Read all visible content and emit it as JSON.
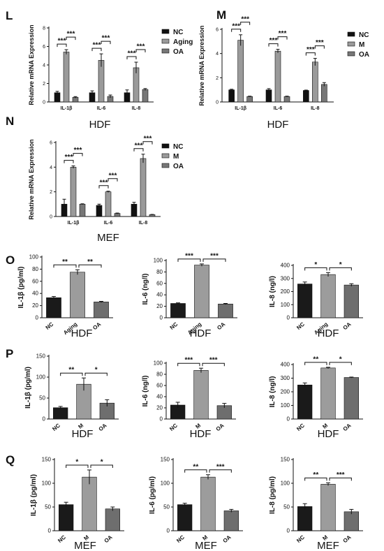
{
  "panels": [
    {
      "id": "L",
      "label": "L",
      "ylabel": "Relative mRNA Expression",
      "caption": "HDF",
      "cats": [
        "IL-1β",
        "IL-6",
        "IL-8"
      ],
      "ylim": [
        0,
        8
      ],
      "yticks": [
        0,
        2,
        4,
        6,
        8
      ],
      "series": [
        {
          "name": "NC",
          "color": "#111111"
        },
        {
          "name": "Aging",
          "color": "#9a9a9a"
        },
        {
          "name": "OA",
          "color": "#777777"
        }
      ],
      "values": [
        [
          1.0,
          5.4,
          0.5
        ],
        [
          1.0,
          4.5,
          0.6
        ],
        [
          1.0,
          3.7,
          1.35
        ]
      ],
      "errors": [
        [
          0.15,
          0.25,
          0.08
        ],
        [
          0.2,
          0.7,
          0.15
        ],
        [
          0.3,
          0.6,
          0.1
        ]
      ],
      "sig": [
        [
          "***",
          "***"
        ],
        [
          "***",
          "***"
        ],
        [
          "***",
          "***"
        ]
      ]
    },
    {
      "id": "M",
      "label": "M",
      "ylabel": "Relative mRNA Expression",
      "caption": "HDF",
      "cats": [
        "IL-1β",
        "IL-6",
        "IL-8"
      ],
      "ylim": [
        0,
        6
      ],
      "yticks": [
        0,
        2,
        4,
        6
      ],
      "series": [
        {
          "name": "NC",
          "color": "#111111"
        },
        {
          "name": "M",
          "color": "#9a9a9a"
        },
        {
          "name": "OA",
          "color": "#777777"
        }
      ],
      "values": [
        [
          1.0,
          5.1,
          0.45
        ],
        [
          1.0,
          4.2,
          0.45
        ],
        [
          0.95,
          3.3,
          1.45
        ]
      ],
      "errors": [
        [
          0.05,
          0.45,
          0.03
        ],
        [
          0.1,
          0.15,
          0.03
        ],
        [
          0.03,
          0.3,
          0.15
        ]
      ],
      "sig": [
        [
          "***",
          "***"
        ],
        [
          "***",
          "***"
        ],
        [
          "***",
          "***"
        ]
      ]
    },
    {
      "id": "N",
      "label": "N",
      "ylabel": "Relative mRNA Expression",
      "caption": "MEF",
      "cats": [
        "IL-1β",
        "IL-6",
        "IL-8"
      ],
      "ylim": [
        0,
        6
      ],
      "yticks": [
        0,
        2,
        4,
        6
      ],
      "series": [
        {
          "name": "NC",
          "color": "#111111"
        },
        {
          "name": "M",
          "color": "#9a9a9a"
        },
        {
          "name": "OA",
          "color": "#777777"
        }
      ],
      "values": [
        [
          1.0,
          4.0,
          1.0
        ],
        [
          0.9,
          2.0,
          0.25
        ],
        [
          1.0,
          4.7,
          0.15
        ]
      ],
      "errors": [
        [
          0.4,
          0.1,
          0.03
        ],
        [
          0.1,
          0.05,
          0.03
        ],
        [
          0.15,
          0.35,
          0.02
        ]
      ],
      "sig": [
        [
          "***",
          "***"
        ],
        [
          "***",
          "***"
        ],
        [
          "***",
          "***"
        ]
      ]
    },
    {
      "id": "O1",
      "label": "O",
      "ylabel": "IL-1β (pg/ml)",
      "caption": "HDF",
      "cats": [
        "NC",
        "Aging",
        "OA"
      ],
      "ylim": [
        0,
        100
      ],
      "yticks": [
        0,
        20,
        40,
        60,
        80,
        100
      ],
      "values": [
        33,
        75,
        26
      ],
      "errors": [
        2,
        4,
        1
      ],
      "sig": [
        "**",
        "**"
      ]
    },
    {
      "id": "O2",
      "label": "",
      "ylabel": "IL-6 (ng/l)",
      "caption": "HDF",
      "cats": [
        "NC",
        "Aging",
        "OA"
      ],
      "ylim": [
        0,
        100
      ],
      "yticks": [
        0,
        20,
        40,
        60,
        80,
        100
      ],
      "values": [
        25,
        92,
        24
      ],
      "errors": [
        1,
        2,
        1
      ],
      "sig": [
        "***",
        "***"
      ]
    },
    {
      "id": "O3",
      "label": "",
      "ylabel": "IL-8 (ng/l)",
      "caption": "HDF",
      "cats": [
        "NC",
        "Aging",
        "OA"
      ],
      "ylim": [
        0,
        400
      ],
      "yticks": [
        0,
        100,
        200,
        300,
        400
      ],
      "values": [
        258,
        330,
        250
      ],
      "errors": [
        15,
        15,
        10
      ],
      "sig": [
        "*",
        "*"
      ]
    },
    {
      "id": "P1",
      "label": "P",
      "ylabel": "IL-1β (pg/ml)",
      "caption": "HDF",
      "cats": [
        "NC",
        "M",
        "OA"
      ],
      "ylim": [
        0,
        150
      ],
      "yticks": [
        0,
        50,
        100,
        150
      ],
      "values": [
        27,
        83,
        38
      ],
      "errors": [
        3,
        15,
        8
      ],
      "sig": [
        "**",
        "*"
      ]
    },
    {
      "id": "P2",
      "label": "",
      "ylabel": "IL-6 (ng/l)",
      "caption": "HDF",
      "cats": [
        "NC",
        "M",
        "OA"
      ],
      "ylim": [
        0,
        100
      ],
      "yticks": [
        0,
        20,
        40,
        60,
        80,
        100
      ],
      "values": [
        25,
        87,
        24
      ],
      "errors": [
        5,
        4,
        4
      ],
      "sig": [
        "***",
        "***"
      ]
    },
    {
      "id": "P3",
      "label": "",
      "ylabel": "IL-8 (ng/l)",
      "caption": "HDF",
      "cats": [
        "NC",
        "M",
        "OA"
      ],
      "ylim": [
        0,
        400
      ],
      "yticks": [
        0,
        100,
        200,
        300,
        400
      ],
      "values": [
        250,
        375,
        305
      ],
      "errors": [
        15,
        5,
        3
      ],
      "sig": [
        "**",
        "*"
      ]
    },
    {
      "id": "Q1",
      "label": "Q",
      "ylabel": "IL-1β (pg/ml)",
      "caption": "MEF",
      "cats": [
        "NC",
        "M",
        "OA"
      ],
      "ylim": [
        0,
        150
      ],
      "yticks": [
        0,
        50,
        100,
        150
      ],
      "values": [
        55,
        113,
        46
      ],
      "errors": [
        5,
        15,
        4
      ],
      "sig": [
        "*",
        "*"
      ]
    },
    {
      "id": "Q2",
      "label": "",
      "ylabel": "IL-6 (pg/ml)",
      "caption": "MEF",
      "cats": [
        "NC",
        "M",
        "OA"
      ],
      "ylim": [
        0,
        150
      ],
      "yticks": [
        0,
        50,
        100,
        150
      ],
      "values": [
        55,
        113,
        42
      ],
      "errors": [
        3,
        5,
        3
      ],
      "sig": [
        "**",
        "***"
      ]
    },
    {
      "id": "Q3",
      "label": "",
      "ylabel": "IL-8 (pg/ml)",
      "caption": "MEF",
      "cats": [
        "NC",
        "M",
        "OA"
      ],
      "ylim": [
        0,
        150
      ],
      "yticks": [
        0,
        50,
        100,
        150
      ],
      "values": [
        51,
        98,
        40
      ],
      "errors": [
        6,
        3,
        5
      ],
      "sig": [
        "**",
        "***"
      ]
    }
  ],
  "chart_data": [
    {
      "type": "bar",
      "panel": "L",
      "categories": [
        "IL-1β",
        "IL-6",
        "IL-8"
      ],
      "ylabel": "Relative mRNA Expression",
      "ylim": [
        0,
        8
      ],
      "series": [
        {
          "name": "NC",
          "values": [
            1.0,
            1.0,
            1.0
          ]
        },
        {
          "name": "Aging",
          "values": [
            5.4,
            4.5,
            3.7
          ]
        },
        {
          "name": "OA",
          "values": [
            0.5,
            0.6,
            1.35
          ]
        }
      ]
    },
    {
      "type": "bar",
      "panel": "M",
      "categories": [
        "IL-1β",
        "IL-6",
        "IL-8"
      ],
      "ylabel": "Relative mRNA Expression",
      "ylim": [
        0,
        6
      ],
      "series": [
        {
          "name": "NC",
          "values": [
            1.0,
            1.0,
            0.95
          ]
        },
        {
          "name": "M",
          "values": [
            5.1,
            4.2,
            3.3
          ]
        },
        {
          "name": "OA",
          "values": [
            0.45,
            0.45,
            1.45
          ]
        }
      ]
    },
    {
      "type": "bar",
      "panel": "N",
      "categories": [
        "IL-1β",
        "IL-6",
        "IL-8"
      ],
      "ylabel": "Relative mRNA Expression",
      "ylim": [
        0,
        6
      ],
      "series": [
        {
          "name": "NC",
          "values": [
            1.0,
            0.9,
            1.0
          ]
        },
        {
          "name": "M",
          "values": [
            4.0,
            2.0,
            4.7
          ]
        },
        {
          "name": "OA",
          "values": [
            1.0,
            0.25,
            0.15
          ]
        }
      ]
    },
    {
      "type": "bar",
      "panel": "O",
      "categories": [
        "NC",
        "Aging",
        "OA"
      ],
      "ylabel": "IL-1β (pg/ml)",
      "ylim": [
        0,
        100
      ],
      "values": [
        33,
        75,
        26
      ]
    },
    {
      "type": "bar",
      "panel": "O",
      "categories": [
        "NC",
        "Aging",
        "OA"
      ],
      "ylabel": "IL-6 (ng/l)",
      "ylim": [
        0,
        100
      ],
      "values": [
        25,
        92,
        24
      ]
    },
    {
      "type": "bar",
      "panel": "O",
      "categories": [
        "NC",
        "Aging",
        "OA"
      ],
      "ylabel": "IL-8 (ng/l)",
      "ylim": [
        0,
        400
      ],
      "values": [
        258,
        330,
        250
      ]
    },
    {
      "type": "bar",
      "panel": "P",
      "categories": [
        "NC",
        "M",
        "OA"
      ],
      "ylabel": "IL-1β (pg/ml)",
      "ylim": [
        0,
        150
      ],
      "values": [
        27,
        83,
        38
      ]
    },
    {
      "type": "bar",
      "panel": "P",
      "categories": [
        "NC",
        "M",
        "OA"
      ],
      "ylabel": "IL-6 (ng/l)",
      "ylim": [
        0,
        100
      ],
      "values": [
        25,
        87,
        24
      ]
    },
    {
      "type": "bar",
      "panel": "P",
      "categories": [
        "NC",
        "M",
        "OA"
      ],
      "ylabel": "IL-8 (ng/l)",
      "ylim": [
        0,
        400
      ],
      "values": [
        250,
        375,
        305
      ]
    },
    {
      "type": "bar",
      "panel": "Q",
      "categories": [
        "NC",
        "M",
        "OA"
      ],
      "ylabel": "IL-1β (pg/ml)",
      "ylim": [
        0,
        150
      ],
      "values": [
        55,
        113,
        46
      ]
    },
    {
      "type": "bar",
      "panel": "Q",
      "categories": [
        "NC",
        "M",
        "OA"
      ],
      "ylabel": "IL-6 (pg/ml)",
      "ylim": [
        0,
        150
      ],
      "values": [
        55,
        113,
        42
      ]
    },
    {
      "type": "bar",
      "panel": "Q",
      "categories": [
        "NC",
        "M",
        "OA"
      ],
      "ylabel": "IL-8 (pg/ml)",
      "ylim": [
        0,
        150
      ],
      "values": [
        51,
        98,
        40
      ]
    }
  ]
}
